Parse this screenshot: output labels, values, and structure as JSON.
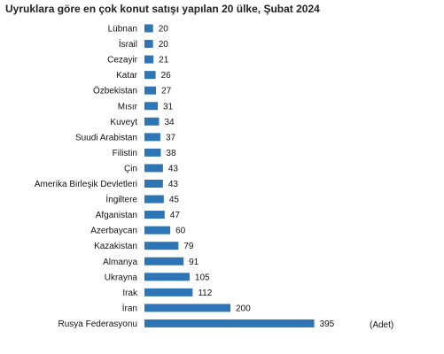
{
  "chart_data": {
    "type": "bar",
    "orientation": "horizontal",
    "title": "Uyruklara göre en çok konut satışı yapılan 20 ülke, Şubat 2024",
    "unit_label": "(Adet)",
    "xlim": [
      0,
      400
    ],
    "bar_color": "#2E75B6",
    "categories": [
      "Lübnan",
      "İsrail",
      "Cezayir",
      "Katar",
      "Özbekistan",
      "Mısır",
      "Kuveyt",
      "Suudi Arabistan",
      "Filistin",
      "Çin",
      "Amerika Birleşik Devletleri",
      "İngiltere",
      "Afganistan",
      "Azerbaycan",
      "Kazakistan",
      "Almanya",
      "Ukrayna",
      "Irak",
      "İran",
      "Rusya Federasyonu"
    ],
    "values": [
      20,
      20,
      21,
      26,
      27,
      31,
      34,
      37,
      38,
      43,
      43,
      45,
      47,
      60,
      79,
      91,
      105,
      112,
      200,
      395
    ]
  }
}
